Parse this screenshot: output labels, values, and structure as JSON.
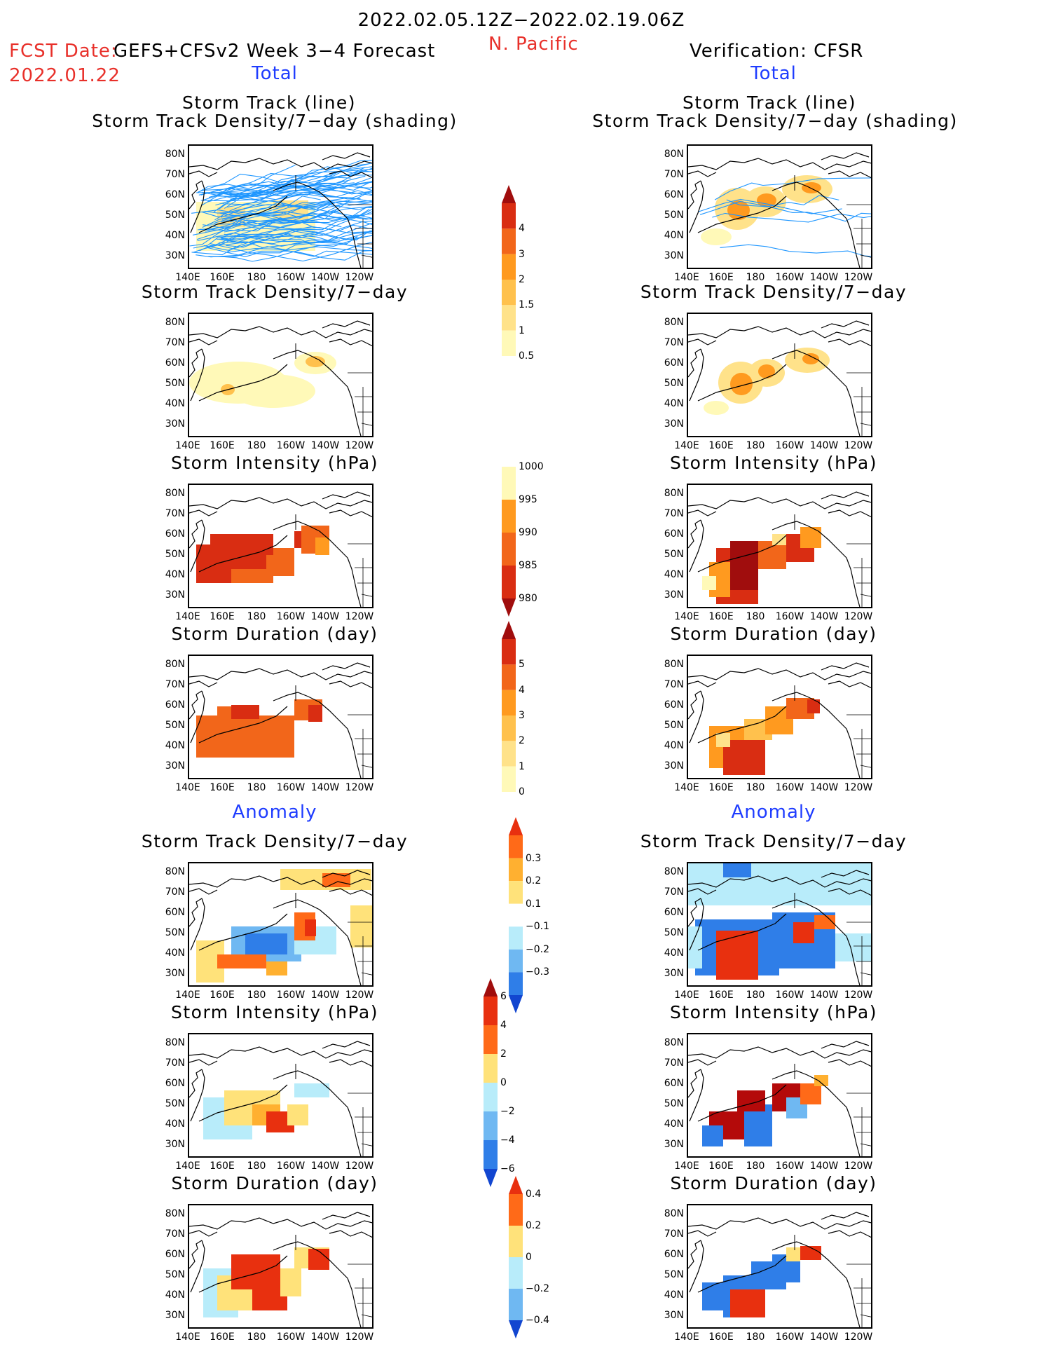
{
  "header": {
    "period": "2022.02.05.12Z−2022.02.19.06Z",
    "fcst_date_label": "FCST Date:",
    "fcst_date": "2022.01.22",
    "model": "GEFS+CFSv2 Week 3−4 Forecast",
    "region": "N. Pacific",
    "verification": "Verification: CFSR"
  },
  "sections": {
    "total_left": "Total",
    "total_right": "Total",
    "anomaly_left": "Anomaly",
    "anomaly_right": "Anomaly"
  },
  "panel_titles": {
    "track_line": "Storm Track (line)",
    "track_shading": "Storm Track Density/7−day (shading)",
    "density": "Storm Track Density/7−day",
    "intensity": "Storm Intensity (hPa)",
    "duration": "Storm Duration (day)"
  },
  "axes": {
    "lat_labels": [
      "80N",
      "70N",
      "60N",
      "50N",
      "40N",
      "30N"
    ],
    "lon_labels": [
      "140E",
      "160E",
      "180",
      "160W",
      "140W",
      "120W"
    ]
  },
  "colorbars": {
    "density_total": [
      "4",
      "3",
      "2",
      "1.5",
      "1",
      "0.5"
    ],
    "intensity_total": [
      "1000",
      "995",
      "990",
      "985",
      "980"
    ],
    "duration_total": [
      "5",
      "4",
      "3",
      "2",
      "1",
      "0"
    ],
    "density_anom": [
      "0.3",
      "0.2",
      "0.1",
      "−0.1",
      "−0.2",
      "−0.3"
    ],
    "intensity_anom": [
      "6",
      "4",
      "2",
      "0",
      "−2",
      "−4",
      "−6"
    ],
    "duration_anom": [
      "0.4",
      "0.2",
      "0",
      "−0.2",
      "−0.4"
    ]
  },
  "colors": {
    "total_scale": [
      "#fff9b8",
      "#ffe28a",
      "#ffc14d",
      "#ff9a1f",
      "#f2661a",
      "#d92d12",
      "#a00d0d"
    ],
    "anom_positive": [
      "#ffe27a",
      "#ffb030",
      "#ff6a18",
      "#e8300f",
      "#b40a0a"
    ],
    "anom_negative": [
      "#b8ecfa",
      "#6fb8f2",
      "#2f7ee8",
      "#1246d0"
    ],
    "track_line": "#1e96ff"
  }
}
